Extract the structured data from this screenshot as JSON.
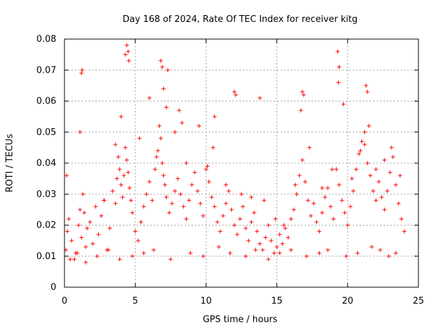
{
  "chart_data": {
    "type": "scatter",
    "title": "Day 168 of 2024, Rate Of TEC Index for receiver kitg",
    "xlabel": "GPS time / hours",
    "ylabel": "ROTI / TECUs",
    "xlim": [
      0,
      25
    ],
    "ylim": [
      0,
      0.08
    ],
    "x_ticks": [
      "0",
      "5",
      "10",
      "15",
      "20",
      "25"
    ],
    "y_ticks": [
      "0",
      "0.01",
      "0.02",
      "0.03",
      "0.04",
      "0.05",
      "0.06",
      "0.07",
      "0.08"
    ],
    "grid": true,
    "marker": "+",
    "color": "#ff0000",
    "series": [
      {
        "name": "ROTI",
        "x": [
          0.1,
          0.2,
          0.3,
          0.5,
          0.7,
          0.9,
          1.0,
          1.1,
          1.2,
          1.3,
          1.4,
          1.5,
          1.6,
          1.8,
          2.0,
          2.2,
          2.4,
          2.6,
          2.8,
          3.0,
          3.2,
          3.4,
          3.6,
          3.7,
          3.8,
          3.9,
          4.0,
          4.1,
          4.2,
          4.3,
          4.4,
          4.5,
          4.6,
          4.7,
          4.8,
          5.0,
          5.2,
          5.4,
          5.6,
          5.8,
          6.0,
          6.2,
          6.4,
          6.6,
          6.7,
          6.8,
          6.9,
          7.0,
          7.1,
          7.2,
          7.4,
          7.6,
          7.8,
          8.0,
          8.2,
          8.4,
          8.6,
          8.8,
          9.0,
          9.2,
          9.4,
          9.6,
          9.8,
          10.0,
          10.2,
          10.4,
          10.5,
          10.6,
          10.8,
          11.0,
          11.2,
          11.4,
          11.6,
          11.8,
          12.0,
          12.2,
          12.4,
          12.6,
          12.8,
          13.0,
          13.2,
          13.4,
          13.6,
          13.8,
          14.0,
          14.2,
          14.4,
          14.6,
          14.8,
          15.0,
          15.2,
          15.4,
          15.6,
          15.8,
          16.0,
          16.2,
          16.4,
          16.6,
          16.8,
          17.0,
          17.2,
          17.4,
          17.6,
          17.8,
          18.0,
          18.2,
          18.4,
          18.6,
          18.8,
          19.0,
          19.2,
          19.4,
          19.6,
          19.8,
          20.0,
          20.2,
          20.4,
          20.6,
          20.8,
          21.0,
          21.2,
          21.4,
          21.6,
          21.8,
          22.0,
          22.2,
          22.4,
          22.6,
          22.8,
          23.0,
          23.2,
          23.4,
          23.6,
          23.8,
          24.0,
          1.2,
          1.25,
          4.3,
          4.4,
          4.5,
          4.55,
          6.8,
          6.9,
          7.0,
          7.3,
          8.1,
          12.0,
          12.1,
          13.8,
          16.8,
          16.9,
          19.3,
          19.35,
          19.4,
          21.3,
          21.4,
          21.5,
          0.15,
          1.1,
          2.8,
          3.6,
          4.0,
          5.3,
          6.0,
          6.5,
          7.2,
          7.8,
          8.3,
          8.6,
          9.5,
          10.1,
          10.6,
          11.4,
          12.5,
          13.2,
          14.1,
          14.9,
          15.5,
          16.3,
          16.7,
          17.3,
          18.2,
          18.9,
          19.7,
          20.3,
          20.9,
          21.2,
          22.0,
          22.6,
          23.1,
          23.7,
          0.4,
          0.8,
          1.5,
          2.3,
          3.1,
          3.9,
          4.8,
          5.6,
          6.3,
          7.5,
          8.9,
          9.8,
          10.9,
          11.7,
          12.8,
          13.5,
          14.4,
          15.2,
          16.0,
          17.1,
          18.0,
          18.6,
          19.9,
          20.7,
          21.7,
          22.3,
          22.9,
          23.4
        ],
        "y": [
          0.012,
          0.018,
          0.022,
          0.015,
          0.009,
          0.011,
          0.02,
          0.025,
          0.016,
          0.03,
          0.024,
          0.013,
          0.019,
          0.021,
          0.014,
          0.026,
          0.017,
          0.023,
          0.028,
          0.012,
          0.019,
          0.031,
          0.027,
          0.035,
          0.042,
          0.038,
          0.033,
          0.029,
          0.036,
          0.045,
          0.041,
          0.037,
          0.032,
          0.028,
          0.024,
          0.018,
          0.015,
          0.021,
          0.026,
          0.03,
          0.034,
          0.028,
          0.038,
          0.044,
          0.052,
          0.048,
          0.04,
          0.036,
          0.033,
          0.029,
          0.024,
          0.027,
          0.031,
          0.035,
          0.03,
          0.026,
          0.022,
          0.028,
          0.033,
          0.037,
          0.031,
          0.027,
          0.023,
          0.038,
          0.034,
          0.029,
          0.045,
          0.026,
          0.021,
          0.018,
          0.023,
          0.027,
          0.031,
          0.025,
          0.02,
          0.017,
          0.022,
          0.026,
          0.019,
          0.015,
          0.021,
          0.024,
          0.018,
          0.014,
          0.012,
          0.016,
          0.02,
          0.015,
          0.011,
          0.013,
          0.017,
          0.014,
          0.019,
          0.016,
          0.022,
          0.025,
          0.03,
          0.036,
          0.041,
          0.034,
          0.028,
          0.023,
          0.027,
          0.021,
          0.018,
          0.024,
          0.029,
          0.032,
          0.026,
          0.022,
          0.038,
          0.033,
          0.028,
          0.024,
          0.02,
          0.026,
          0.031,
          0.038,
          0.043,
          0.047,
          0.05,
          0.04,
          0.036,
          0.031,
          0.028,
          0.034,
          0.029,
          0.025,
          0.031,
          0.037,
          0.042,
          0.033,
          0.027,
          0.022,
          0.018,
          0.069,
          0.07,
          0.075,
          0.078,
          0.076,
          0.073,
          0.073,
          0.071,
          0.064,
          0.07,
          0.057,
          0.063,
          0.062,
          0.061,
          0.063,
          0.062,
          0.076,
          0.066,
          0.071,
          0.065,
          0.063,
          0.052,
          0.036,
          0.05,
          0.028,
          0.046,
          0.055,
          0.048,
          0.061,
          0.042,
          0.058,
          0.05,
          0.053,
          0.04,
          0.052,
          0.039,
          0.055,
          0.033,
          0.03,
          0.029,
          0.028,
          0.022,
          0.02,
          0.033,
          0.057,
          0.045,
          0.032,
          0.038,
          0.059,
          0.035,
          0.044,
          0.046,
          0.038,
          0.041,
          0.045,
          0.036,
          0.009,
          0.011,
          0.008,
          0.01,
          0.012,
          0.009,
          0.01,
          0.011,
          0.012,
          0.009,
          0.011,
          0.01,
          0.013,
          0.011,
          0.01,
          0.012,
          0.009,
          0.011,
          0.012,
          0.01,
          0.011,
          0.012,
          0.01,
          0.011,
          0.013,
          0.012,
          0.01,
          0.011
        ]
      }
    ]
  }
}
